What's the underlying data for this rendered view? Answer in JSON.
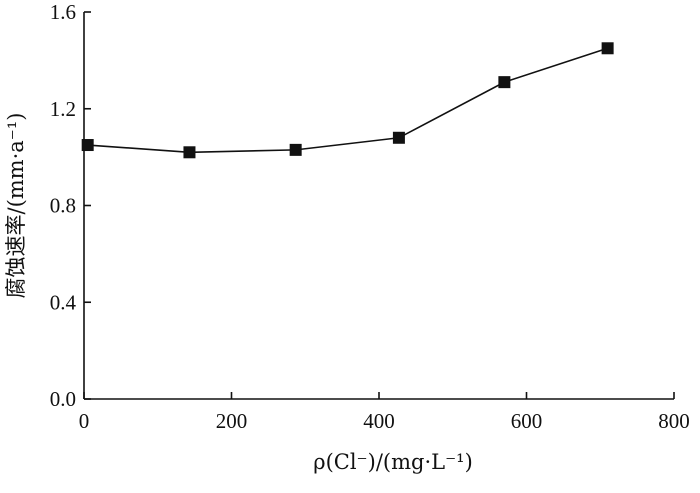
{
  "chart_data": {
    "type": "line",
    "xlabel": "ρ(Cl⁻)/(mg·L⁻¹)",
    "ylabel": "腐蚀速率/(mm·a⁻¹)",
    "xlim": [
      0,
      800
    ],
    "ylim": [
      0.0,
      1.6
    ],
    "xticks": [
      0,
      200,
      400,
      600,
      800
    ],
    "yticks": [
      0.0,
      0.4,
      0.8,
      1.2,
      1.6
    ],
    "xtick_labels": [
      "0",
      "200",
      "400",
      "600",
      "800"
    ],
    "ytick_labels": [
      "0.0",
      "0.4",
      "0.8",
      "1.2",
      "1.6"
    ],
    "grid": false,
    "marker": "square",
    "color": "#111111",
    "series": [
      {
        "x": [
          5,
          143,
          287,
          427,
          570,
          710
        ],
        "values": [
          1.05,
          1.02,
          1.03,
          1.08,
          1.31,
          1.45
        ]
      }
    ]
  }
}
